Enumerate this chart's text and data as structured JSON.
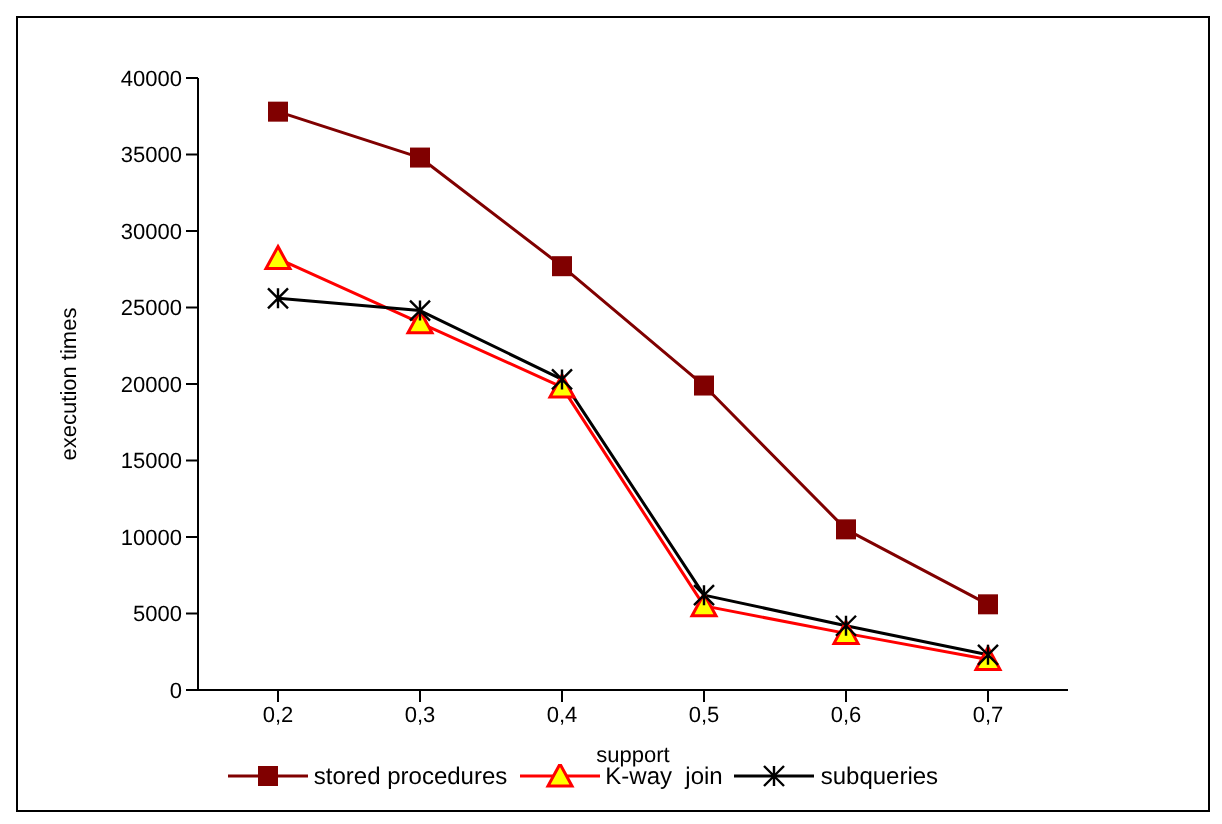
{
  "chart_data": {
    "type": "line",
    "xlabel": "support",
    "ylabel": "execution times",
    "categories": [
      "0,2",
      "0,3",
      "0,4",
      "0,5",
      "0,6",
      "0,7"
    ],
    "series": [
      {
        "name": "stored procedures",
        "color": "#800000",
        "marker": "square",
        "values": [
          37800,
          34800,
          27700,
          19900,
          10500,
          5600
        ]
      },
      {
        "name": "K-way  join",
        "color": "#ff0000",
        "marker": "triangle",
        "values": [
          28200,
          24000,
          19800,
          5500,
          3700,
          2000
        ]
      },
      {
        "name": "subqueries",
        "color": "#000000",
        "marker": "cross",
        "values": [
          25600,
          24800,
          20300,
          6200,
          4200,
          2300
        ]
      }
    ],
    "ylim": [
      0,
      40000
    ],
    "yticks": [
      0,
      5000,
      10000,
      15000,
      20000,
      25000,
      30000,
      35000,
      40000
    ],
    "grid": false,
    "legend": "bottom"
  }
}
